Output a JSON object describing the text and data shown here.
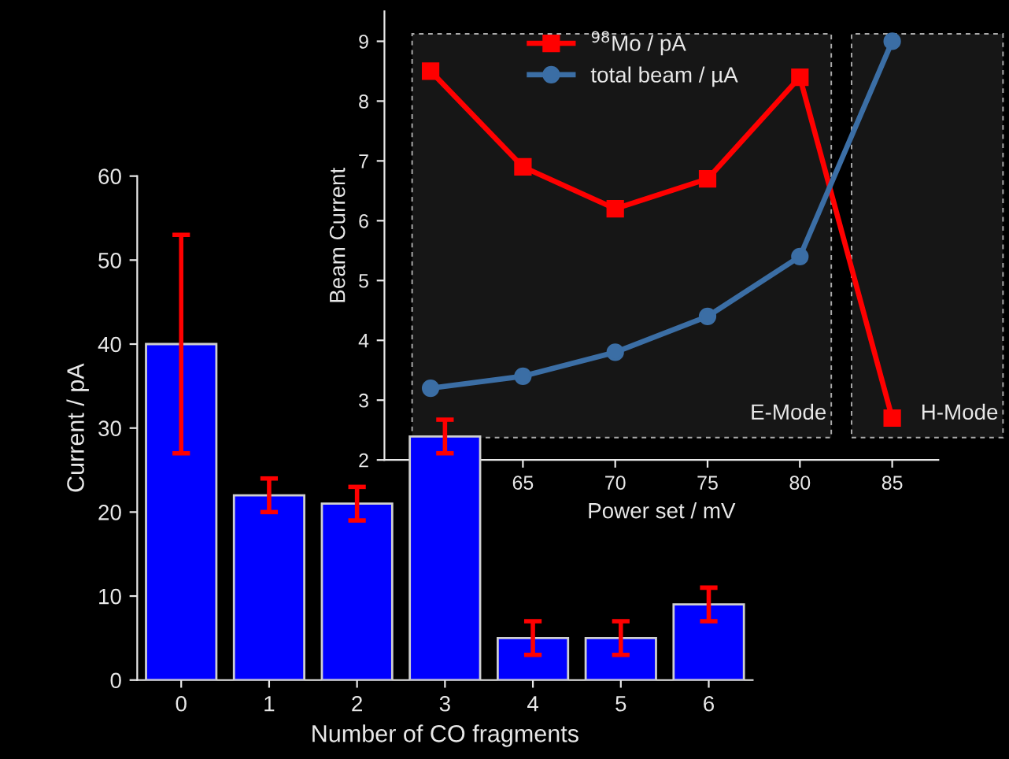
{
  "chart_data": [
    {
      "type": "bar",
      "xlabel": "Number of CO fragments",
      "ylabel": "Current / pA",
      "categories": [
        "0",
        "1",
        "2",
        "3",
        "4",
        "5",
        "6"
      ],
      "values": [
        40,
        22,
        21,
        29,
        5,
        5,
        9
      ],
      "errors": [
        13,
        2,
        2,
        2,
        2,
        2,
        2
      ],
      "color": "#0000ff",
      "ylim": [
        0,
        60
      ],
      "yticks": [
        0,
        10,
        20,
        30,
        40,
        50,
        60
      ],
      "grid": false,
      "legend": false
    },
    {
      "type": "line",
      "xlabel": "Power set / mV",
      "ylabel": "Beam Current",
      "x": [
        60,
        65,
        70,
        75,
        80,
        85
      ],
      "series": [
        {
          "name": "$^{98}$Mo / pA",
          "color": "#ff0000",
          "marker": "square",
          "values": [
            8.5,
            6.9,
            6.2,
            6.7,
            8.4,
            2.7
          ]
        },
        {
          "name": "total beam / µA",
          "color": "#3b6ea5",
          "marker": "circle",
          "values": [
            3.2,
            3.4,
            3.8,
            4.4,
            5.4,
            9.0
          ]
        }
      ],
      "xlim": [
        57.5,
        87.5
      ],
      "xticks": [
        65,
        70,
        75,
        80,
        85
      ],
      "ylim": [
        2,
        9.5
      ],
      "yticks": [
        2,
        3,
        4,
        5,
        6,
        7,
        8,
        9
      ],
      "bands": [
        {
          "axis": "x",
          "from": 59,
          "to": 81.7,
          "label": "E-Mode",
          "color": "#161616"
        },
        {
          "axis": "x",
          "from": 82.8,
          "to": 91,
          "label": "H-Mode",
          "color": "#161616"
        }
      ],
      "grid": false,
      "legend": "top"
    }
  ]
}
